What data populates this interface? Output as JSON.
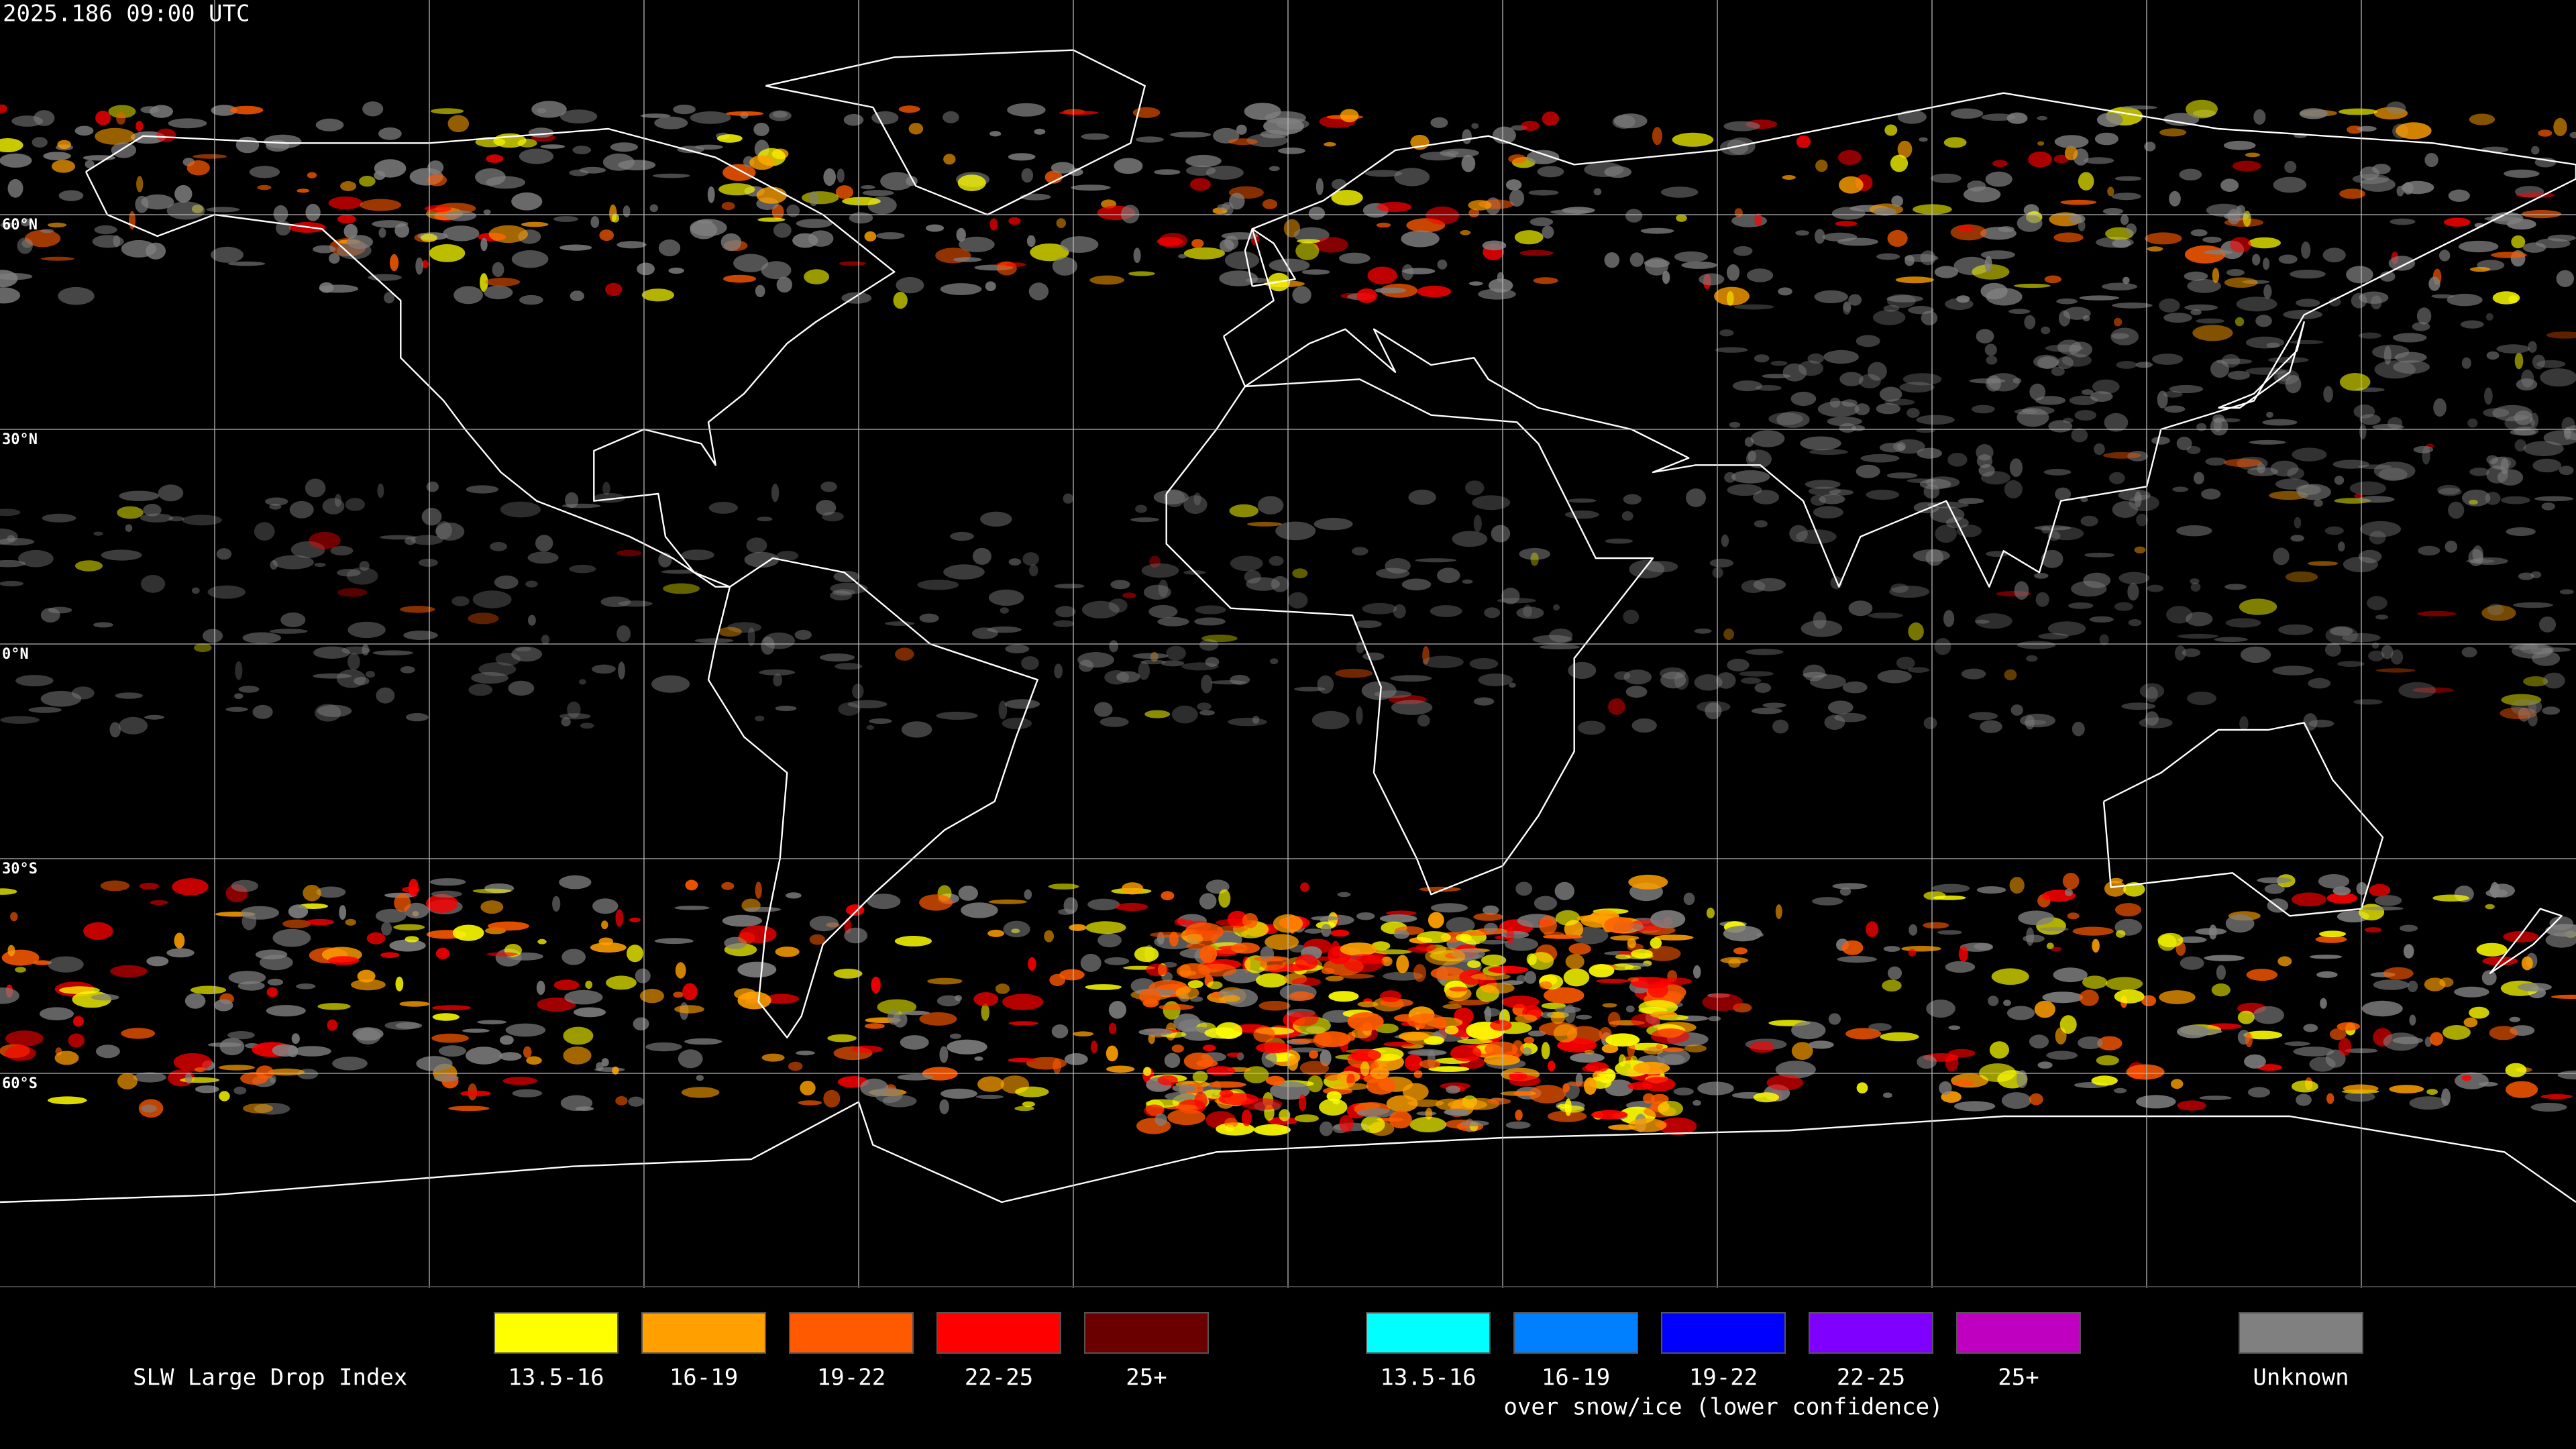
{
  "timestamp": "2025.186 09:00 UTC",
  "map": {
    "latitude_labels": [
      "60°N",
      "30°N",
      "0°N",
      "30°S",
      "60°S"
    ],
    "grid": true
  },
  "legend": {
    "title": "SLW Large Drop Index",
    "groups": [
      {
        "items": [
          {
            "label": "13.5-16",
            "color": "#ffff00"
          },
          {
            "label": "16-19",
            "color": "#ffa000"
          },
          {
            "label": "19-22",
            "color": "#ff5a00"
          },
          {
            "label": "22-25",
            "color": "#ff0000"
          },
          {
            "label": "25+",
            "color": "#6b0000"
          }
        ]
      },
      {
        "items": [
          {
            "label": "13.5-16",
            "color": "#00ffff"
          },
          {
            "label": "16-19",
            "color": "#0080ff"
          },
          {
            "label": "19-22",
            "color": "#0000ff"
          },
          {
            "label": "22-25",
            "color": "#8000ff"
          },
          {
            "label": "25+",
            "color": "#c000c0"
          }
        ],
        "caption": "over snow/ice (lower confidence)"
      },
      {
        "items": [
          {
            "label": "Unknown",
            "color": "#808080"
          }
        ]
      }
    ]
  }
}
